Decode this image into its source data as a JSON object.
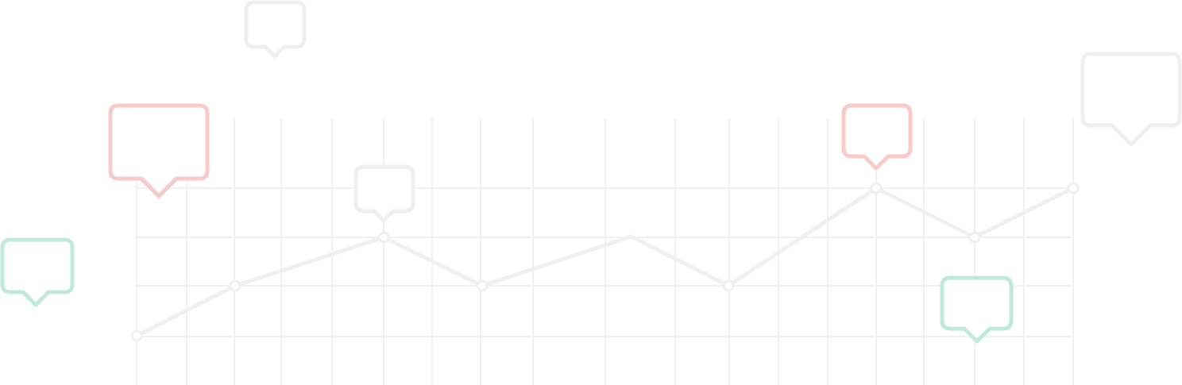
{
  "colors": {
    "grid": "#f1f1f1",
    "line": "#f0f0f0",
    "neutral_bubble": "#efefef",
    "red_bubble": "#f8caca",
    "green_bubble": "#bfe9d8"
  },
  "icons": {
    "bubble_icon": "speech-bubble-icon",
    "point_icon": "circle-marker-icon"
  }
}
